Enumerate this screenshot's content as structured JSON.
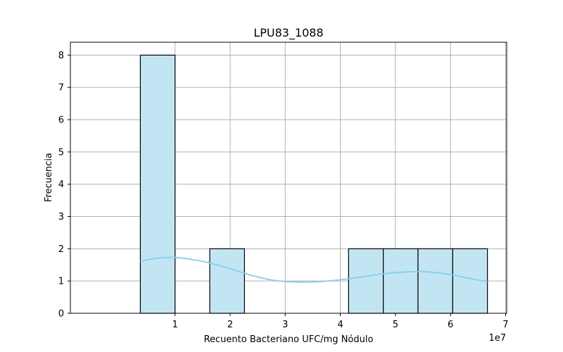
{
  "chart_data": {
    "type": "bar",
    "title": "LPU83_1088",
    "xlabel": "Recuento Bacteriano UFC/mg Nódulo",
    "ylabel": "Frecuencia",
    "x_offset_label": "1e7",
    "xlim": [
      -0.9,
      7.02
    ],
    "ylim": [
      0,
      8.4
    ],
    "x_ticks": [
      1,
      2,
      3,
      4,
      5,
      6,
      7
    ],
    "y_ticks": [
      0,
      1,
      2,
      3,
      4,
      5,
      6,
      7,
      8
    ],
    "grid": true,
    "bins": [
      {
        "x0": 0.37,
        "x1": 1.0,
        "count": 8
      },
      {
        "x0": 1.0,
        "x1": 1.63,
        "count": 0
      },
      {
        "x0": 1.63,
        "x1": 2.26,
        "count": 2
      },
      {
        "x0": 2.26,
        "x1": 2.89,
        "count": 0
      },
      {
        "x0": 2.89,
        "x1": 3.52,
        "count": 0
      },
      {
        "x0": 3.52,
        "x1": 4.15,
        "count": 0
      },
      {
        "x0": 4.15,
        "x1": 4.78,
        "count": 2
      },
      {
        "x0": 4.78,
        "x1": 5.41,
        "count": 2
      },
      {
        "x0": 5.41,
        "x1": 6.04,
        "count": 2
      },
      {
        "x0": 6.04,
        "x1": 6.67,
        "count": 2
      }
    ],
    "kde": {
      "x": [
        0.37,
        0.7,
        1.0,
        1.3,
        1.6,
        2.0,
        2.4,
        2.8,
        3.2,
        3.6,
        4.0,
        4.4,
        4.8,
        5.2,
        5.5,
        5.8,
        6.1,
        6.4,
        6.67
      ],
      "y": [
        1.62,
        1.71,
        1.73,
        1.67,
        1.57,
        1.38,
        1.17,
        1.02,
        0.97,
        0.98,
        1.04,
        1.13,
        1.23,
        1.28,
        1.29,
        1.25,
        1.17,
        1.06,
        0.98
      ]
    },
    "colors": {
      "bar_fill": "#c2e5f3",
      "bar_edge": "#000000",
      "kde_line": "#87ceeb",
      "grid": "#b0b0b0"
    }
  }
}
